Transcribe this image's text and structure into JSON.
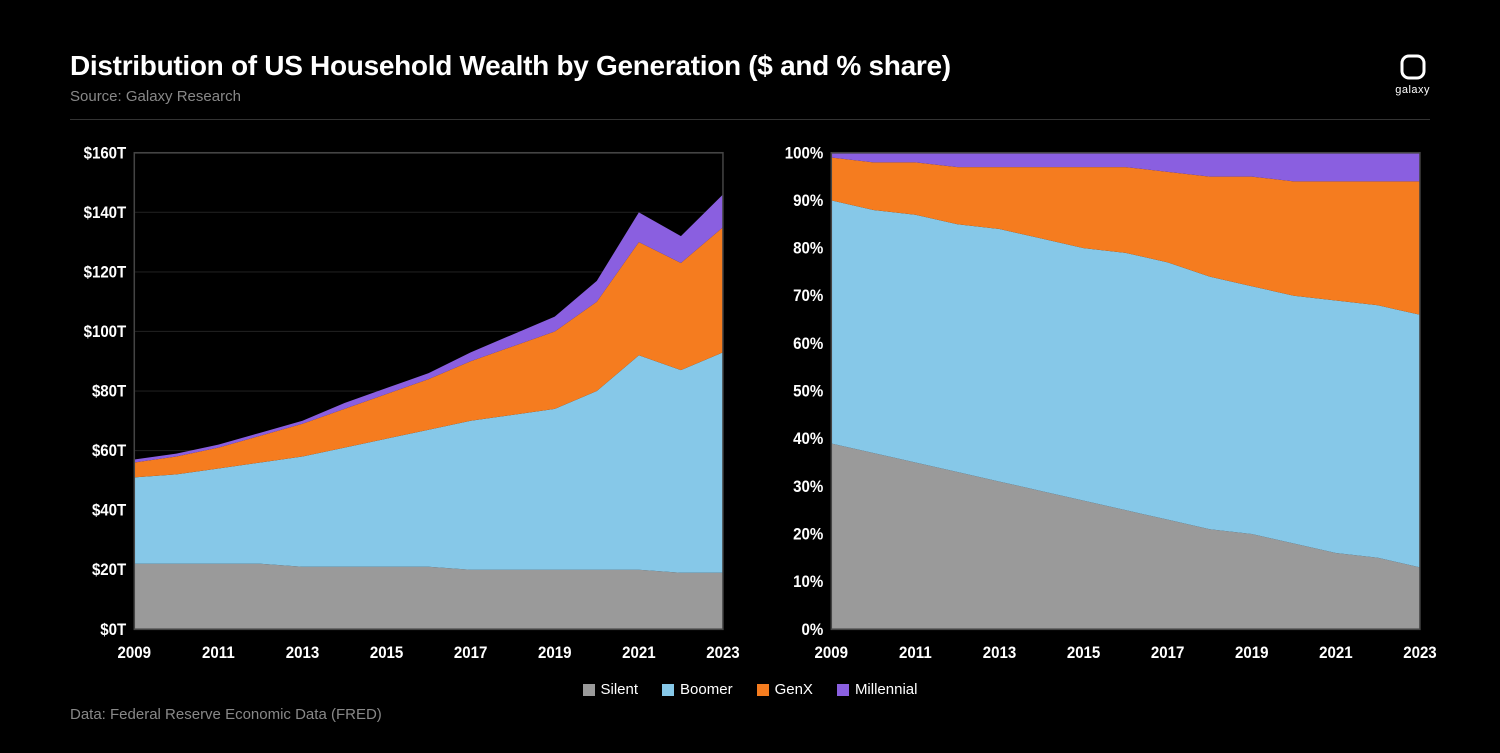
{
  "header": {
    "title": "Distribution of US Household Wealth by Generation ($ and % share)",
    "source": "Source: Galaxy Research",
    "brand": "galaxy"
  },
  "footer": {
    "data_note": "Data: Federal Reserve Economic Data (FRED)"
  },
  "colors": {
    "background": "#000000",
    "silent": "#9a9a9a",
    "boomer": "#86c8e8",
    "genx": "#f57c1f",
    "millennial": "#8a5fe0",
    "axis_text": "#ffffff",
    "grid": "#1e1e1e",
    "border": "#444444",
    "muted_text": "#888888"
  },
  "legend": {
    "items": [
      {
        "key": "silent",
        "label": "Silent"
      },
      {
        "key": "boomer",
        "label": "Boomer"
      },
      {
        "key": "genx",
        "label": "GenX"
      },
      {
        "key": "millennial",
        "label": "Millennial"
      }
    ]
  },
  "x_axis": {
    "years": [
      2009,
      2010,
      2011,
      2012,
      2013,
      2014,
      2015,
      2016,
      2017,
      2018,
      2019,
      2020,
      2021,
      2022,
      2023
    ],
    "tick_labels": [
      "2009",
      "2011",
      "2013",
      "2015",
      "2017",
      "2019",
      "2021",
      "2023"
    ],
    "tick_years": [
      2009,
      2011,
      2013,
      2015,
      2017,
      2019,
      2021,
      2023
    ],
    "label_fontsize": 15
  },
  "chart_dollars": {
    "type": "stacked-area",
    "ylim": [
      0,
      160
    ],
    "ytick_step": 20,
    "ytick_labels": [
      "$0T",
      "$20T",
      "$40T",
      "$60T",
      "$80T",
      "$100T",
      "$120T",
      "$140T",
      "$160T"
    ],
    "series": {
      "silent": [
        22,
        22,
        22,
        22,
        21,
        21,
        21,
        21,
        20,
        20,
        20,
        20,
        20,
        19,
        19
      ],
      "boomer": [
        29,
        30,
        32,
        34,
        37,
        40,
        43,
        46,
        50,
        52,
        54,
        60,
        72,
        68,
        74
      ],
      "genx": [
        5,
        6,
        7,
        9,
        11,
        13,
        15,
        17,
        20,
        23,
        26,
        30,
        38,
        36,
        42
      ],
      "millennial": [
        1,
        1,
        1,
        1,
        1,
        2,
        2,
        2,
        3,
        4,
        5,
        7,
        10,
        9,
        11
      ]
    }
  },
  "chart_percent": {
    "type": "stacked-area-100",
    "ylim": [
      0,
      100
    ],
    "ytick_step": 10,
    "ytick_labels": [
      "0%",
      "10%",
      "20%",
      "30%",
      "40%",
      "50%",
      "60%",
      "70%",
      "80%",
      "90%",
      "100%"
    ],
    "series": {
      "silent": [
        39,
        37,
        35,
        33,
        31,
        29,
        27,
        25,
        23,
        21,
        20,
        18,
        16,
        15,
        13
      ],
      "boomer": [
        51,
        51,
        52,
        52,
        53,
        53,
        53,
        54,
        54,
        53,
        52,
        52,
        53,
        53,
        53
      ],
      "genx": [
        9,
        10,
        11,
        12,
        13,
        15,
        17,
        18,
        19,
        21,
        23,
        24,
        25,
        26,
        28
      ],
      "millennial": [
        1,
        2,
        2,
        3,
        3,
        3,
        3,
        3,
        4,
        5,
        5,
        6,
        6,
        6,
        6
      ]
    }
  },
  "styling": {
    "title_fontsize": 28,
    "title_weight": 700,
    "subtitle_fontsize": 15,
    "axis_fontsize": 15,
    "legend_fontsize": 15,
    "line_width": 0
  }
}
